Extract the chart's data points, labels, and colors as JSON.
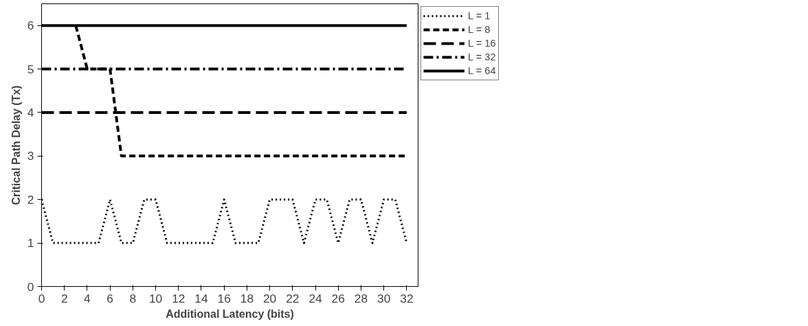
{
  "chart_data": {
    "type": "line",
    "xlabel": "Additional Latency (bits)",
    "ylabel": "Critical Path Delay (Tx)",
    "x": [
      0,
      1,
      2,
      3,
      4,
      5,
      6,
      7,
      8,
      9,
      10,
      11,
      12,
      13,
      14,
      15,
      16,
      17,
      18,
      19,
      20,
      21,
      22,
      23,
      24,
      25,
      26,
      27,
      28,
      29,
      30,
      31,
      32
    ],
    "series": [
      {
        "name": "L = 1",
        "color": "#000000",
        "line_style": "dotted",
        "values": [
          2,
          1,
          1,
          1,
          1,
          1,
          2,
          1,
          1,
          2,
          2,
          1,
          1,
          1,
          1,
          1,
          2,
          1,
          1,
          1,
          2,
          2,
          2,
          1,
          2,
          2,
          1,
          2,
          2,
          1,
          2,
          2,
          1
        ]
      },
      {
        "name": "L = 8",
        "color": "#000000",
        "line_style": "dashed",
        "values": [
          null,
          null,
          null,
          6,
          5,
          5,
          5,
          3,
          3,
          3,
          3,
          3,
          3,
          3,
          3,
          3,
          3,
          3,
          3,
          3,
          3,
          3,
          3,
          3,
          3,
          3,
          3,
          3,
          3,
          3,
          3,
          3,
          3
        ]
      },
      {
        "name": "L = 16",
        "color": "#000000",
        "line_style": "longdash",
        "values": [
          4,
          4,
          4,
          4,
          4,
          4,
          4,
          4,
          4,
          4,
          4,
          4,
          4,
          4,
          4,
          4,
          4,
          4,
          4,
          4,
          4,
          4,
          4,
          4,
          4,
          4,
          4,
          4,
          4,
          4,
          4,
          4,
          4
        ]
      },
      {
        "name": "L = 32",
        "color": "#000000",
        "line_style": "dashdot",
        "values": [
          5,
          5,
          5,
          5,
          5,
          5,
          5,
          5,
          5,
          5,
          5,
          5,
          5,
          5,
          5,
          5,
          5,
          5,
          5,
          5,
          5,
          5,
          5,
          5,
          5,
          5,
          5,
          5,
          5,
          5,
          5,
          5,
          5
        ]
      },
      {
        "name": "L = 64",
        "color": "#000000",
        "line_style": "solid",
        "values": [
          6,
          6,
          6,
          6,
          6,
          6,
          6,
          6,
          6,
          6,
          6,
          6,
          6,
          6,
          6,
          6,
          6,
          6,
          6,
          6,
          6,
          6,
          6,
          6,
          6,
          6,
          6,
          6,
          6,
          6,
          6,
          6,
          6
        ]
      }
    ],
    "xlim": [
      0,
      33
    ],
    "ylim": [
      0,
      6.5
    ],
    "xticks": [
      0,
      2,
      4,
      6,
      8,
      10,
      12,
      14,
      16,
      18,
      20,
      22,
      24,
      26,
      28,
      30,
      32
    ],
    "yticks": [
      0,
      1,
      2,
      3,
      4,
      5,
      6
    ],
    "legend": "top right",
    "grid": false
  }
}
